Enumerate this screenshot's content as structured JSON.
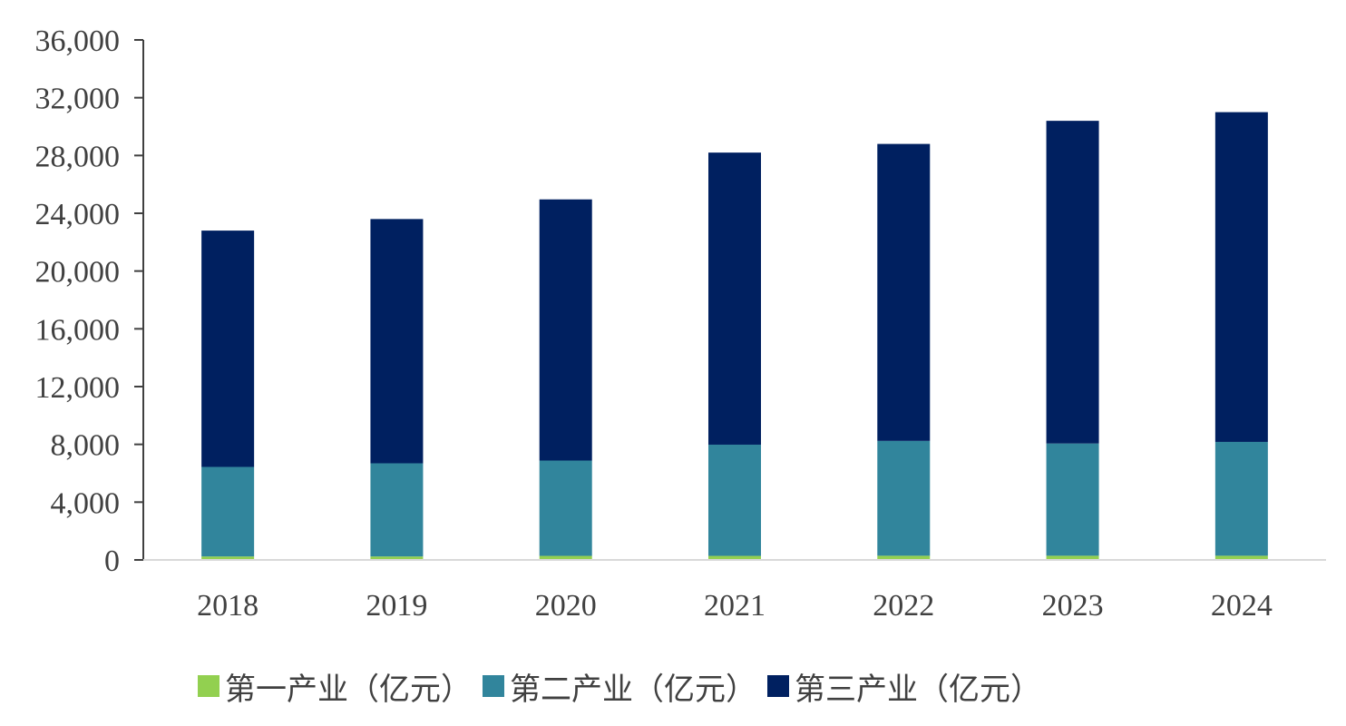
{
  "chart_data": {
    "type": "bar",
    "stacked": true,
    "categories": [
      "2018",
      "2019",
      "2020",
      "2021",
      "2022",
      "2023",
      "2024"
    ],
    "series": [
      {
        "name": "第一产业（亿元）",
        "color": "#92d050",
        "values": [
          240,
          240,
          280,
          280,
          290,
          290,
          290
        ]
      },
      {
        "name": "第二产业（亿元）",
        "color": "#31859c",
        "values": [
          6200,
          6450,
          6600,
          7700,
          7950,
          7770,
          7880
        ]
      },
      {
        "name": "第三产业（亿元）",
        "color": "#002060",
        "values": [
          16360,
          16910,
          18080,
          20220,
          20560,
          22340,
          22830
        ]
      }
    ],
    "ylim": [
      0,
      36000
    ],
    "yticks": [
      0,
      4000,
      8000,
      12000,
      16000,
      20000,
      24000,
      28000,
      32000,
      36000
    ],
    "ytick_labels": [
      "0",
      "4,000",
      "8,000",
      "12,000",
      "16,000",
      "20,000",
      "24,000",
      "28,000",
      "32,000",
      "36,000"
    ],
    "title": "",
    "xlabel": "",
    "ylabel": "",
    "legend_position": "bottom"
  }
}
